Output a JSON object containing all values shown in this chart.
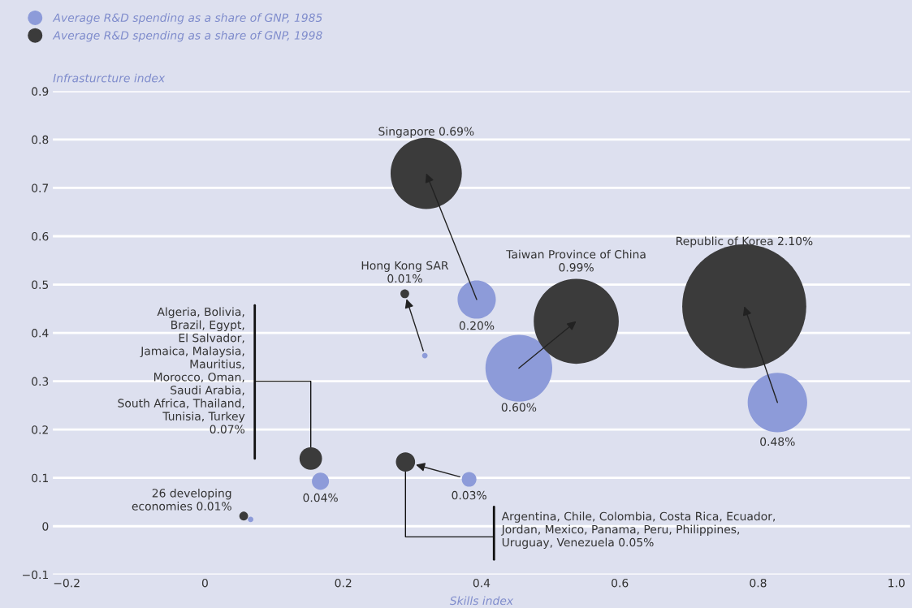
{
  "chart_data": {
    "type": "bubble",
    "xlabel": "Skills index",
    "ylabel": "Infrasturcture index",
    "xlim": [
      -0.22,
      1.02
    ],
    "ylim": [
      -0.1,
      0.9
    ],
    "xticks": [
      {
        "value": -0.2,
        "label": "−0.2"
      },
      0,
      0.2,
      0.4,
      0.6,
      0.8,
      {
        "value": 1.0,
        "label": "1.0"
      }
    ],
    "yticks": [
      {
        "value": -0.1,
        "label": "−0.1"
      },
      0,
      0.1,
      0.2,
      0.3,
      0.4,
      0.5,
      0.6,
      0.7,
      0.8,
      0.9
    ],
    "grid": "y",
    "legend": "top left",
    "marker": "circle",
    "series": [
      {
        "name": "Average R&D spending as a share of GNP, 1985",
        "color": "#8d9bd9",
        "x": [
          0.393,
          0.318,
          0.454,
          0.828,
          0.167,
          0.382,
          0.066
        ],
        "values": [
          0.469,
          0.353,
          0.327,
          0.256,
          0.093,
          0.097,
          0.014
        ],
        "sizes": [
          0.095,
          0.002,
          0.29,
          0.23,
          0.019,
          0.014,
          0.002
        ]
      },
      {
        "name": "Average R&D spending as a share of GNP, 1998",
        "color": "#3b3b3b",
        "x": [
          0.32,
          0.289,
          0.537,
          0.78,
          0.153,
          0.29,
          0.056
        ],
        "values": [
          0.73,
          0.481,
          0.424,
          0.455,
          0.14,
          0.133,
          0.021
        ],
        "sizes": [
          0.33,
          0.005,
          0.47,
          1,
          0.033,
          0.024,
          0.005
        ]
      }
    ],
    "annotations": [
      "Singapore 0.69%",
      "0.20%",
      "Hong Kong SAR\n0.01%",
      "Taiwan Province of China\n0.99%",
      "0.60%",
      "Republic of Korea 2.10%",
      "0.48%",
      "Algeria, Bolivia,\nBrazil, Egypt,\nEl Salvador,\nJamaica, Malaysia,\nMauritius,\nMorocco, Oman,\nSaudi Arabia,\nSouth Africa, Thailand,\nTunisia, Turkey\n0.07%",
      "0.04%",
      {
        "text": "0.03%",
        "x": 0.382,
        "y": 0.097
      },
      "26 developing\neconomies 0.01%",
      "Argentina, Chile, Colombia, Costa Rica, Ecuador,\nJordan, Mexico, Panama, Peru, Philippines,\nUruguay, Venezuela 0.05%"
    ]
  }
}
